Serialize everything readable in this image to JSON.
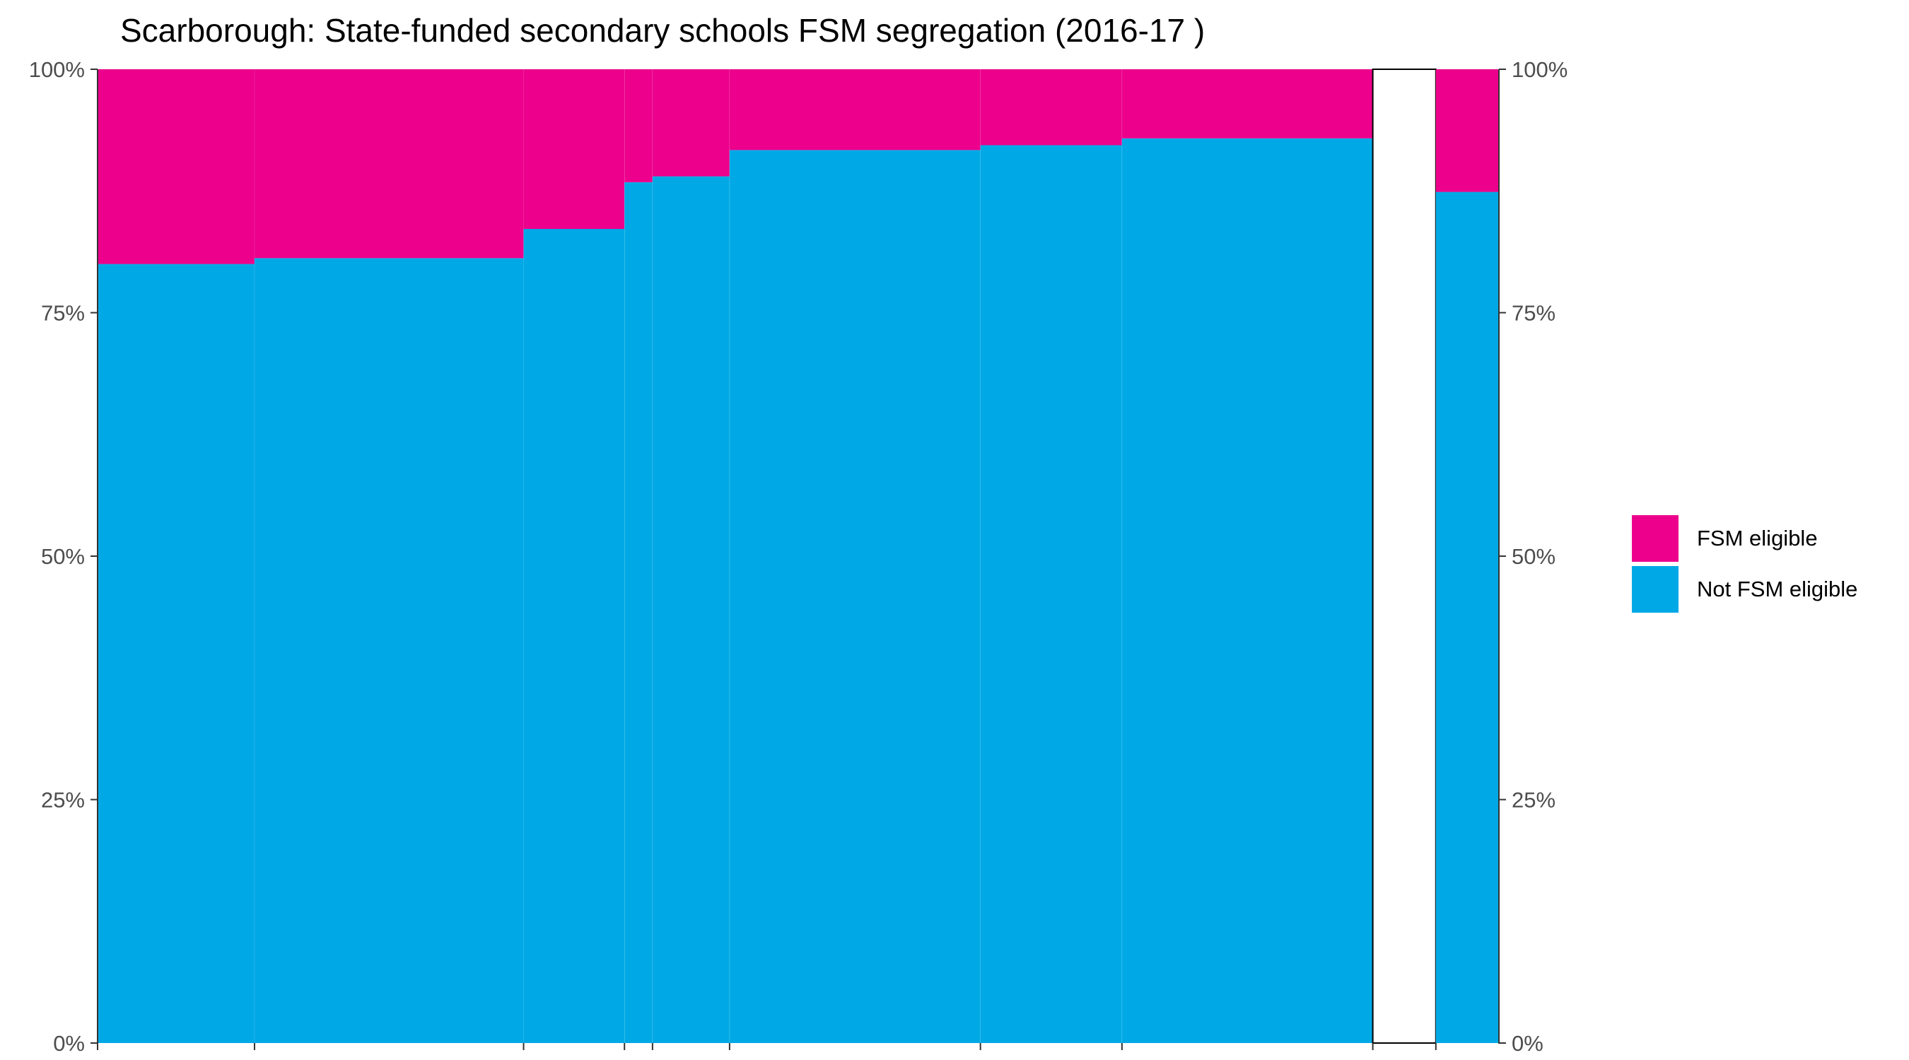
{
  "chart_data": {
    "type": "bar",
    "title": "Scarborough: State-funded secondary schools FSM segregation (2016-17 )",
    "xlabel": "",
    "ylabel": "",
    "ylim": [
      0,
      100
    ],
    "y_ticks": [
      "0%",
      "25%",
      "50%",
      "75%",
      "100%"
    ],
    "y_tick_values": [
      0,
      25,
      50,
      75,
      100
    ],
    "secondary_y_ticks": [
      "0%",
      "25%",
      "50%",
      "75%",
      "100%"
    ],
    "legend_placement": "right",
    "grid": false,
    "colors": {
      "fsm": "#EC008C",
      "not_fsm": "#00A9E6"
    },
    "series": [
      {
        "name": "FSM eligible",
        "color": "#EC008C"
      },
      {
        "name": "Not FSM eligible",
        "color": "#00A9E6"
      }
    ],
    "note": "Variable-width (mosaic) bars; widths are relative school pupil counts.",
    "bars": [
      {
        "width": 11.2,
        "not_fsm_pct": 80.0,
        "fsm_pct": 20.0
      },
      {
        "width": 19.2,
        "not_fsm_pct": 80.6,
        "fsm_pct": 19.4
      },
      {
        "width": 7.2,
        "not_fsm_pct": 83.6,
        "fsm_pct": 16.4
      },
      {
        "width": 2.0,
        "not_fsm_pct": 88.4,
        "fsm_pct": 11.6
      },
      {
        "width": 5.5,
        "not_fsm_pct": 89.0,
        "fsm_pct": 11.0
      },
      {
        "width": 17.9,
        "not_fsm_pct": 91.7,
        "fsm_pct": 8.3
      },
      {
        "width": 10.1,
        "not_fsm_pct": 92.2,
        "fsm_pct": 7.8
      },
      {
        "width": 17.9,
        "not_fsm_pct": 92.9,
        "fsm_pct": 7.1
      },
      {
        "width": 4.5,
        "empty": true
      },
      {
        "width": 4.5,
        "not_fsm_pct": 87.4,
        "fsm_pct": 12.6
      }
    ]
  }
}
